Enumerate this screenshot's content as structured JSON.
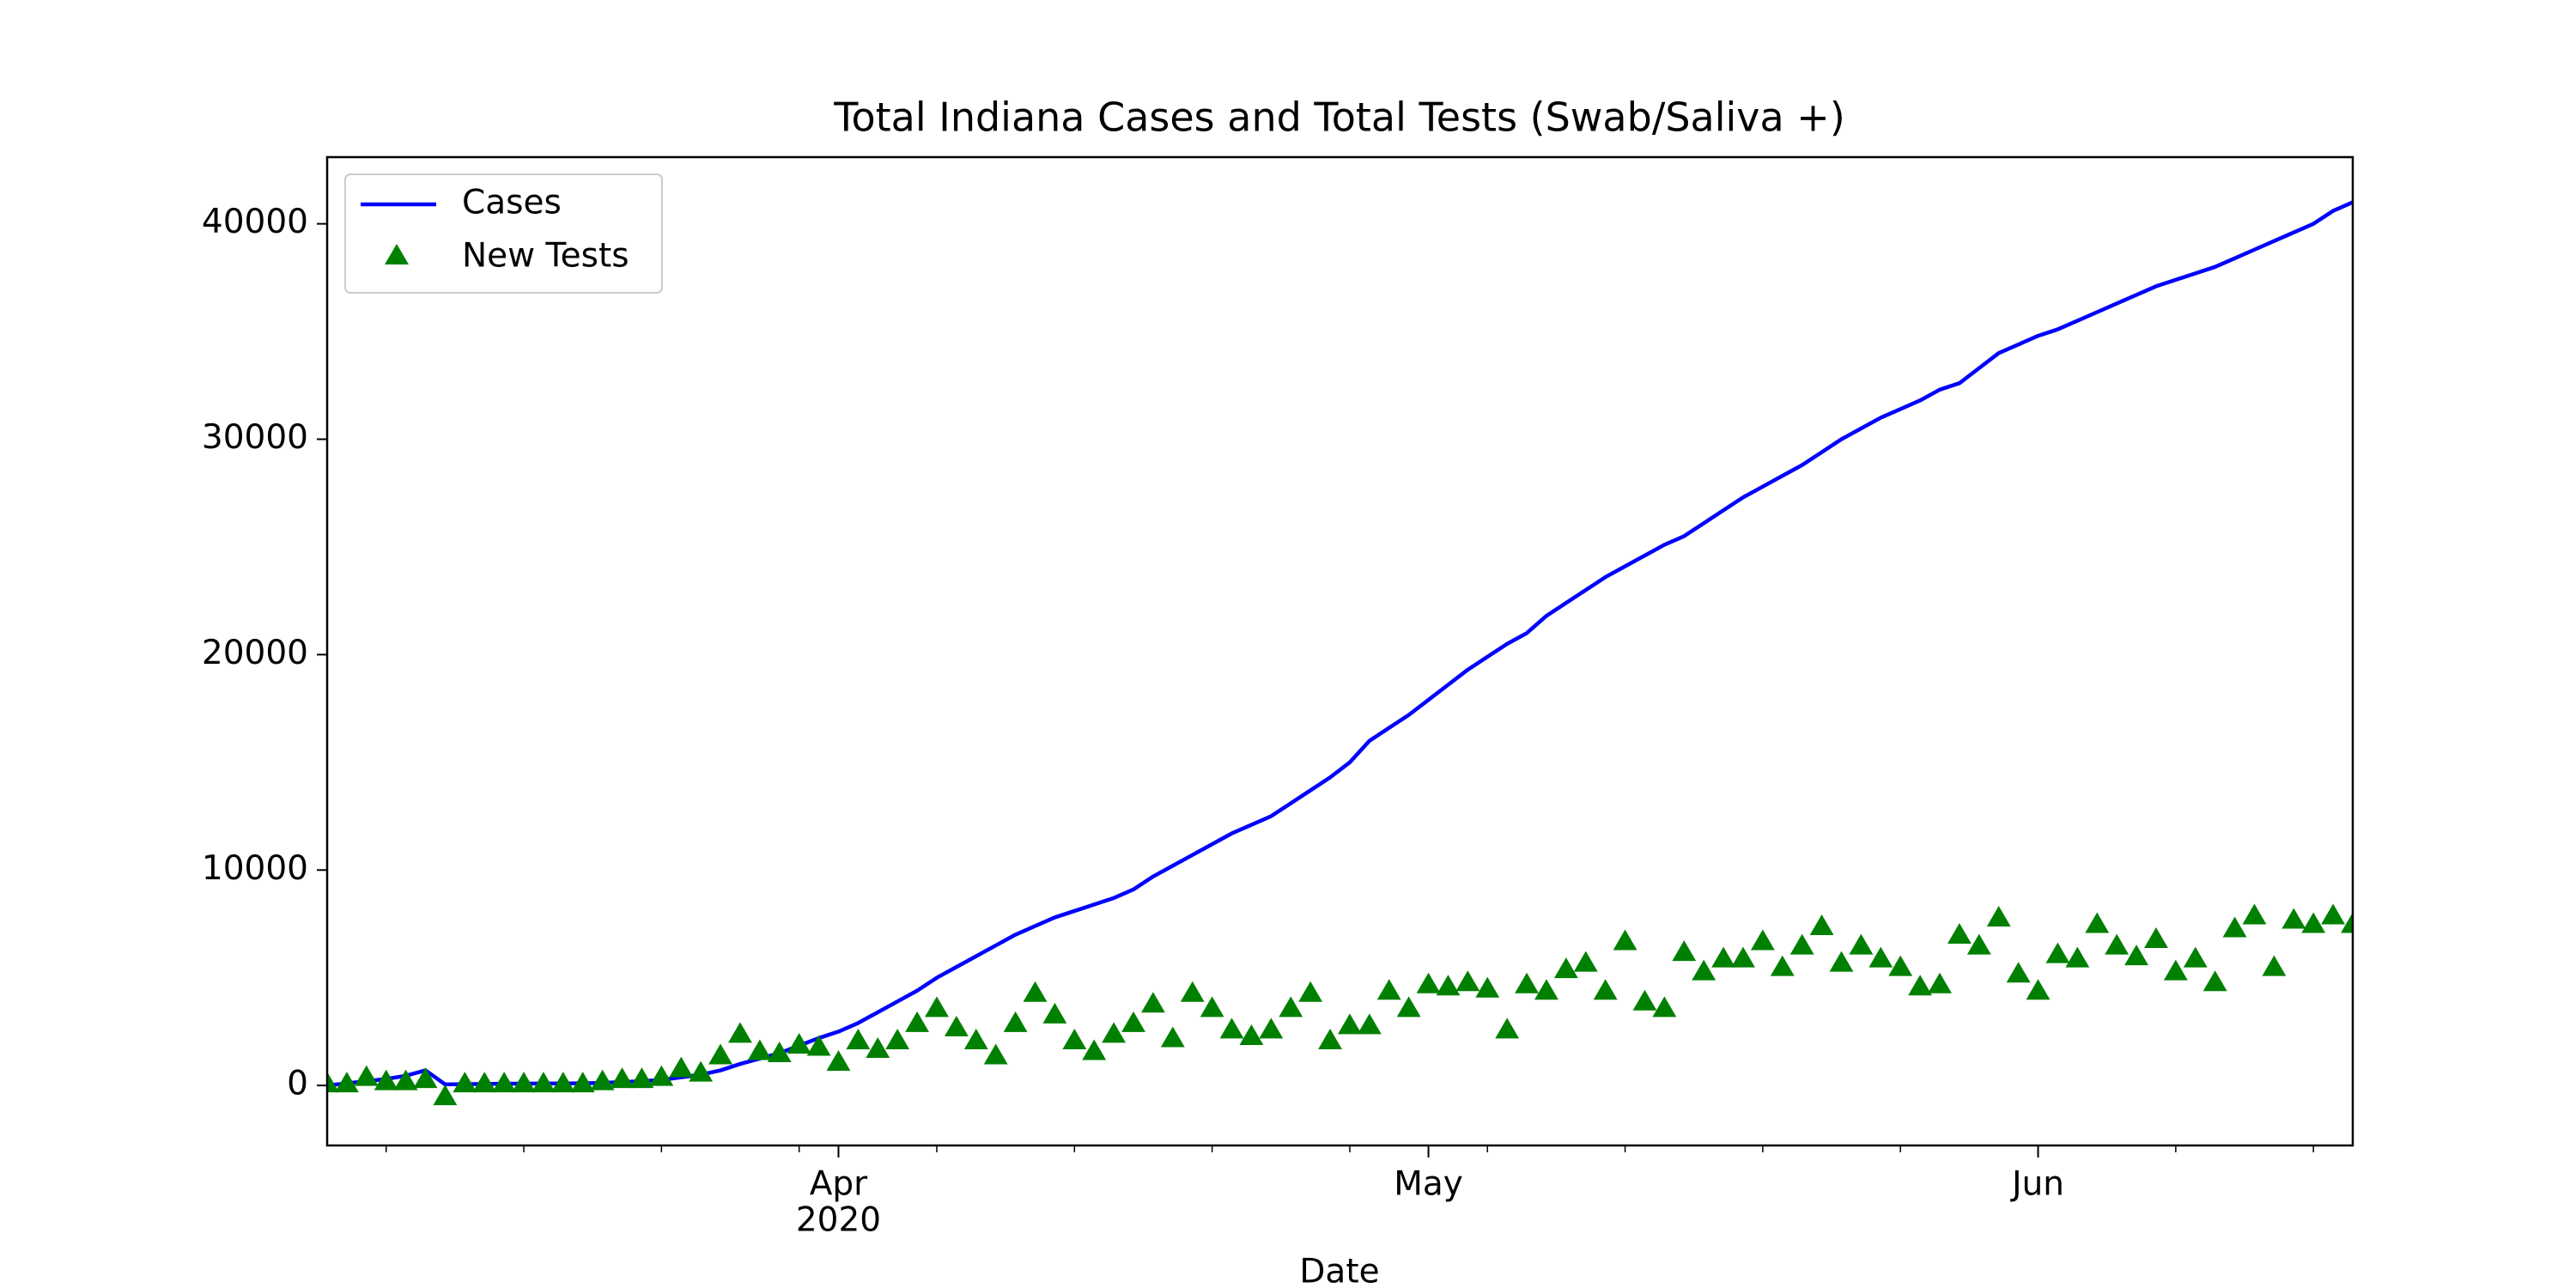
{
  "chart_data": {
    "type": "line",
    "title": "Total Indiana Cases and Total Tests (Swab/Saliva +)",
    "xlabel": "Date",
    "x": [
      "2020-03-06",
      "2020-03-07",
      "2020-03-08",
      "2020-03-09",
      "2020-03-10",
      "2020-03-11",
      "2020-03-12",
      "2020-03-13",
      "2020-03-14",
      "2020-03-15",
      "2020-03-16",
      "2020-03-17",
      "2020-03-18",
      "2020-03-19",
      "2020-03-20",
      "2020-03-21",
      "2020-03-22",
      "2020-03-23",
      "2020-03-24",
      "2020-03-25",
      "2020-03-26",
      "2020-03-27",
      "2020-03-28",
      "2020-03-29",
      "2020-03-30",
      "2020-03-31",
      "2020-04-01",
      "2020-04-02",
      "2020-04-03",
      "2020-04-04",
      "2020-04-05",
      "2020-04-06",
      "2020-04-07",
      "2020-04-08",
      "2020-04-09",
      "2020-04-10",
      "2020-04-11",
      "2020-04-12",
      "2020-04-13",
      "2020-04-14",
      "2020-04-15",
      "2020-04-16",
      "2020-04-17",
      "2020-04-18",
      "2020-04-19",
      "2020-04-20",
      "2020-04-21",
      "2020-04-22",
      "2020-04-23",
      "2020-04-24",
      "2020-04-25",
      "2020-04-26",
      "2020-04-27",
      "2020-04-28",
      "2020-04-29",
      "2020-04-30",
      "2020-05-01",
      "2020-05-02",
      "2020-05-03",
      "2020-05-04",
      "2020-05-05",
      "2020-05-06",
      "2020-05-07",
      "2020-05-08",
      "2020-05-09",
      "2020-05-10",
      "2020-05-11",
      "2020-05-12",
      "2020-05-13",
      "2020-05-14",
      "2020-05-15",
      "2020-05-16",
      "2020-05-17",
      "2020-05-18",
      "2020-05-19",
      "2020-05-20",
      "2020-05-21",
      "2020-05-22",
      "2020-05-23",
      "2020-05-24",
      "2020-05-25",
      "2020-05-26",
      "2020-05-27",
      "2020-05-28",
      "2020-05-29",
      "2020-05-30",
      "2020-05-31",
      "2020-06-01",
      "2020-06-02",
      "2020-06-03",
      "2020-06-04",
      "2020-06-05",
      "2020-06-06",
      "2020-06-07",
      "2020-06-08",
      "2020-06-09",
      "2020-06-10",
      "2020-06-11",
      "2020-06-12",
      "2020-06-13",
      "2020-06-14",
      "2020-06-15",
      "2020-06-16",
      "2020-06-17"
    ],
    "series": [
      {
        "name": "Cases",
        "color": "#0000ff",
        "marker": "line",
        "values": [
          0,
          100,
          200,
          300,
          450,
          700,
          50,
          60,
          70,
          80,
          85,
          90,
          95,
          100,
          120,
          160,
          200,
          260,
          380,
          500,
          700,
          1000,
          1250,
          1500,
          1850,
          2200,
          2500,
          2900,
          3400,
          3900,
          4400,
          5000,
          5500,
          6000,
          6500,
          7000,
          7400,
          7800,
          8100,
          8400,
          8700,
          9100,
          9700,
          10200,
          10700,
          11200,
          11700,
          12100,
          12500,
          13100,
          13700,
          14300,
          15000,
          16000,
          16600,
          17200,
          17900,
          18600,
          19300,
          19900,
          20500,
          21000,
          21800,
          22400,
          23000,
          23600,
          24100,
          24600,
          25100,
          25500,
          26100,
          26700,
          27300,
          27800,
          28300,
          28800,
          29400,
          30000,
          30500,
          31000,
          31400,
          31800,
          32300,
          32600,
          33300,
          34000,
          34400,
          34800,
          35100,
          35500,
          35900,
          36300,
          36700,
          37100,
          37400,
          37700,
          38000,
          38400,
          38800,
          39200,
          39600,
          40000,
          40600,
          41000
        ]
      },
      {
        "name": "New Tests",
        "color": "#008000",
        "marker": "triangle",
        "values": [
          0,
          0,
          300,
          100,
          100,
          200,
          -600,
          0,
          0,
          0,
          0,
          0,
          0,
          0,
          100,
          200,
          200,
          300,
          700,
          500,
          1300,
          2300,
          1500,
          1400,
          1800,
          1700,
          1000,
          2000,
          1600,
          2000,
          2800,
          3500,
          2600,
          2000,
          1300,
          2800,
          4200,
          3200,
          2000,
          1500,
          2300,
          2800,
          3700,
          2100,
          4200,
          3500,
          2500,
          2200,
          2500,
          3500,
          4200,
          2000,
          2700,
          2700,
          4300,
          3500,
          4600,
          4500,
          4700,
          4400,
          2500,
          4600,
          4300,
          5300,
          5600,
          4300,
          6600,
          3800,
          3500,
          6100,
          5200,
          5800,
          5800,
          6600,
          5400,
          6400,
          7300,
          5600,
          6400,
          5800,
          5400,
          4500,
          4600,
          6900,
          6400,
          7700,
          5100,
          4300,
          6000,
          5800,
          7400,
          6400,
          5900,
          6700,
          5200,
          5800,
          4700,
          7200,
          7800,
          5400,
          7600,
          7400,
          7800,
          7400
        ]
      }
    ],
    "xlim": [
      "2020-03-06",
      "2020-06-17"
    ],
    "xticks": [
      {
        "value": "2020-04-01",
        "label": "Apr",
        "sublabel": "2020"
      },
      {
        "value": "2020-05-01",
        "label": "May"
      },
      {
        "value": "2020-06-01",
        "label": "Jun"
      }
    ],
    "xminorticks": [
      "2020-03-09",
      "2020-03-16",
      "2020-03-23",
      "2020-03-30",
      "2020-04-06",
      "2020-04-13",
      "2020-04-20",
      "2020-04-27",
      "2020-05-04",
      "2020-05-11",
      "2020-05-18",
      "2020-05-25",
      "2020-06-08",
      "2020-06-15"
    ],
    "ylim": [
      -2785,
      43095
    ],
    "yticks": [
      0,
      10000,
      20000,
      30000,
      40000
    ],
    "grid": false,
    "legend": "upper-left"
  }
}
